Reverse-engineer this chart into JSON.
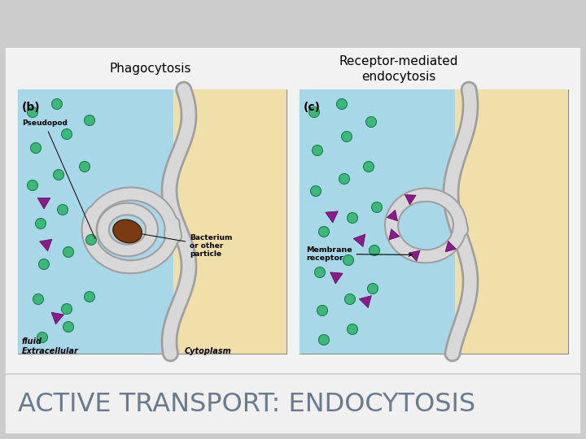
{
  "title": "ACTIVE TRANSPORT: ENDOCYTOSIS",
  "title_color": "#6b7b8d",
  "title_fontsize": 23,
  "bg_color": "#cccccc",
  "panel_bg": "#f2f2f2",
  "label_b": "(b)",
  "label_c": "(c)",
  "caption_left": "Phagocytosis",
  "caption_right": "Receptor-mediated\nendocytosis",
  "ext_color": "#a8d8e8",
  "cyto_color": "#f0dfa8",
  "membrane_dark": "#a0a0a0",
  "membrane_light": "#d8d8d8",
  "bacterium_color": "#7a3b10",
  "green_color": "#3cb878",
  "purple_color": "#8b1a8b",
  "text_color": "#000000",
  "title_bar_color": "#f0f0f0",
  "title_bar_edge": "#cccccc"
}
